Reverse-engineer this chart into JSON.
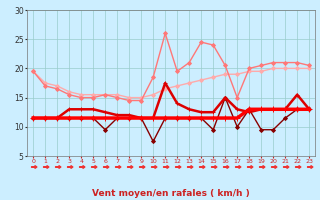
{
  "background_color": "#cceeff",
  "grid_color": "#99cccc",
  "xlabel": "Vent moyen/en rafales ( km/h )",
  "xlim": [
    -0.5,
    23.5
  ],
  "ylim": [
    5,
    30
  ],
  "yticks": [
    5,
    10,
    15,
    20,
    25,
    30
  ],
  "xticks": [
    0,
    1,
    2,
    3,
    4,
    5,
    6,
    7,
    8,
    9,
    10,
    11,
    12,
    13,
    14,
    15,
    16,
    17,
    18,
    19,
    20,
    21,
    22,
    23
  ],
  "series": [
    {
      "x": [
        0,
        1,
        2,
        3,
        4,
        5,
        6,
        7,
        8,
        9,
        10,
        11,
        12,
        13,
        14,
        15,
        16,
        17,
        18,
        19,
        20,
        21,
        22,
        23
      ],
      "y": [
        19.5,
        17.5,
        17.0,
        16.0,
        15.5,
        15.5,
        15.5,
        15.5,
        15.0,
        15.0,
        15.5,
        16.5,
        17.0,
        17.5,
        18.0,
        18.5,
        19.0,
        19.0,
        19.5,
        19.5,
        20.0,
        20.0,
        20.0,
        20.0
      ],
      "color": "#ffaaaa",
      "lw": 1.0,
      "marker": "D",
      "markersize": 2.0,
      "zorder": 3
    },
    {
      "x": [
        0,
        1,
        2,
        3,
        4,
        5,
        6,
        7,
        8,
        9,
        10,
        11,
        12,
        13,
        14,
        15,
        16,
        17,
        18,
        19,
        20,
        21,
        22,
        23
      ],
      "y": [
        19.5,
        17.0,
        16.5,
        15.5,
        15.0,
        15.0,
        15.5,
        15.0,
        14.5,
        14.5,
        18.5,
        26.0,
        19.5,
        21.0,
        24.5,
        24.0,
        20.5,
        15.0,
        20.0,
        20.5,
        21.0,
        21.0,
        21.0,
        20.5
      ],
      "color": "#ff7777",
      "lw": 1.0,
      "marker": "D",
      "markersize": 2.0,
      "zorder": 3
    },
    {
      "x": [
        0,
        1,
        2,
        3,
        4,
        5,
        6,
        7,
        8,
        9,
        10,
        11,
        12,
        13,
        14,
        15,
        16,
        17,
        18,
        19,
        20,
        21,
        22,
        23
      ],
      "y": [
        11.5,
        11.5,
        11.5,
        13.0,
        13.0,
        13.0,
        12.5,
        12.0,
        12.0,
        11.5,
        11.5,
        17.5,
        14.0,
        13.0,
        12.5,
        12.5,
        15.0,
        13.0,
        12.5,
        13.0,
        13.0,
        13.0,
        15.5,
        13.0
      ],
      "color": "#dd0000",
      "lw": 1.8,
      "marker": "+",
      "markersize": 3.5,
      "zorder": 4
    },
    {
      "x": [
        0,
        1,
        2,
        3,
        4,
        5,
        6,
        7,
        8,
        9,
        10,
        11,
        12,
        13,
        14,
        15,
        16,
        17,
        18,
        19,
        20,
        21,
        22,
        23
      ],
      "y": [
        11.5,
        11.5,
        11.5,
        11.5,
        11.5,
        11.5,
        9.5,
        11.5,
        11.5,
        11.5,
        7.5,
        11.5,
        11.5,
        11.5,
        11.5,
        9.5,
        15.0,
        10.0,
        13.0,
        9.5,
        9.5,
        11.5,
        13.0,
        13.0
      ],
      "color": "#880000",
      "lw": 1.0,
      "marker": "D",
      "markersize": 2.0,
      "zorder": 3
    },
    {
      "x": [
        0,
        1,
        2,
        3,
        4,
        5,
        6,
        7,
        8,
        9,
        10,
        11,
        12,
        13,
        14,
        15,
        16,
        17,
        18,
        19,
        20,
        21,
        22,
        23
      ],
      "y": [
        11.5,
        11.5,
        11.5,
        11.5,
        11.5,
        11.5,
        11.5,
        11.5,
        11.5,
        11.5,
        11.5,
        11.5,
        11.5,
        11.5,
        11.5,
        11.5,
        11.5,
        11.5,
        13.0,
        13.0,
        13.0,
        13.0,
        13.0,
        13.0
      ],
      "color": "#ff0000",
      "lw": 2.5,
      "marker": "+",
      "markersize": 4.0,
      "zorder": 5
    }
  ],
  "arrow_color": "#ee3333",
  "tick_color": "#cc2222",
  "xlabel_color": "#cc2222",
  "xlabel_fontsize": 6.5,
  "tick_fontsize_x": 4.5,
  "tick_fontsize_y": 5.5
}
